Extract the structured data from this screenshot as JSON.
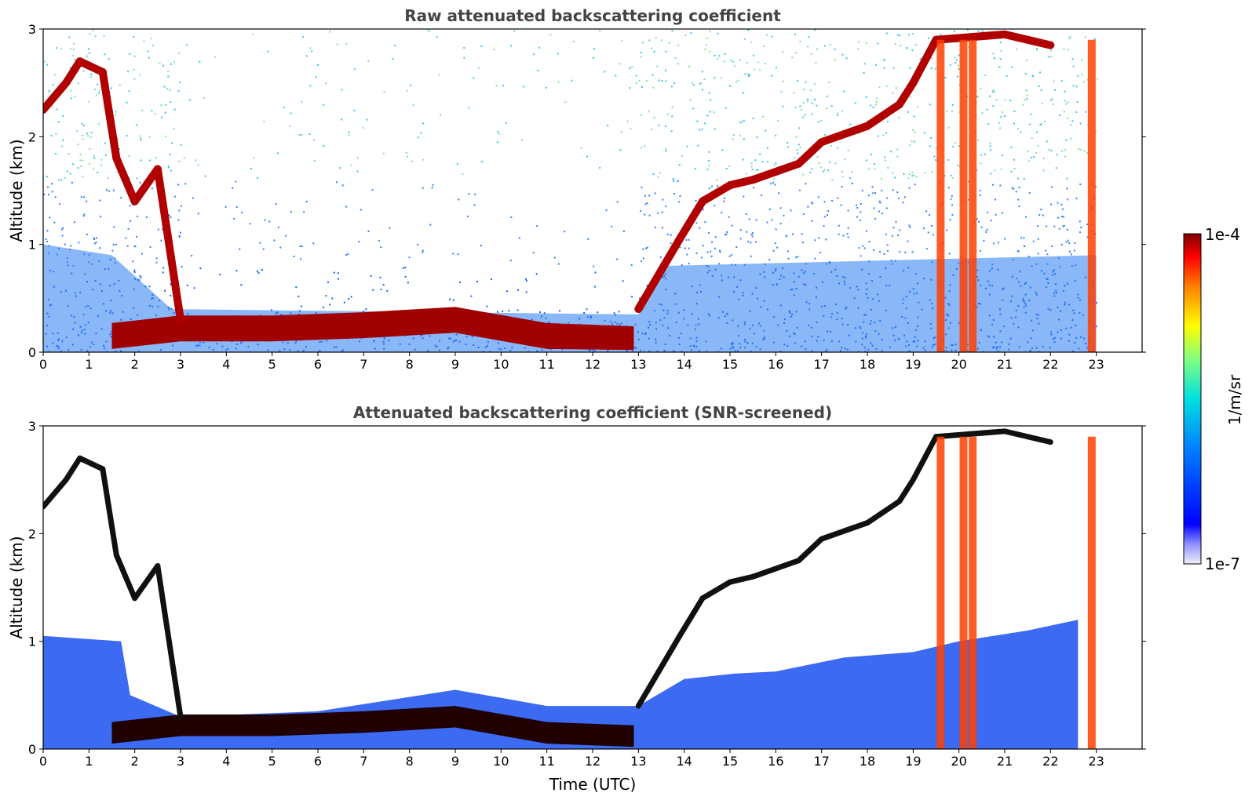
{
  "chart_data": [
    {
      "type": "heatmap",
      "title": "Raw attenuated backscattering coefficient",
      "xlabel": "",
      "ylabel": "Altitude (km)",
      "xlim": [
        0,
        24
      ],
      "ylim": [
        0,
        3
      ],
      "xticks": [
        "0",
        "1",
        "2",
        "3",
        "4",
        "5",
        "6",
        "7",
        "8",
        "9",
        "10",
        "11",
        "12",
        "13",
        "14",
        "15",
        "16",
        "17",
        "18",
        "19",
        "20",
        "21",
        "22",
        "23"
      ],
      "yticks": [
        "0",
        "1",
        "2",
        "3"
      ],
      "features": {
        "cloud_layer_top_km": [
          [
            0.0,
            2.25
          ],
          [
            0.5,
            2.5
          ],
          [
            0.8,
            2.7
          ],
          [
            1.3,
            2.6
          ],
          [
            1.6,
            1.8
          ],
          [
            2.0,
            1.4
          ],
          [
            2.5,
            1.7
          ],
          [
            3.0,
            0.3
          ],
          [
            13.0,
            0.4
          ],
          [
            13.9,
            1.05
          ],
          [
            14.4,
            1.4
          ],
          [
            15.0,
            1.55
          ],
          [
            15.5,
            1.6
          ],
          [
            16.5,
            1.75
          ],
          [
            17.0,
            1.95
          ],
          [
            18.0,
            2.1
          ],
          [
            18.7,
            2.3
          ],
          [
            19.0,
            2.5
          ],
          [
            19.5,
            2.9
          ],
          [
            21.0,
            2.95
          ],
          [
            22.0,
            2.85
          ]
        ],
        "boundary_layer_km": [
          [
            1.5,
            0.15
          ],
          [
            3.0,
            0.22
          ],
          [
            5.0,
            0.22
          ],
          [
            7.0,
            0.25
          ],
          [
            9.0,
            0.3
          ],
          [
            11.0,
            0.15
          ],
          [
            12.9,
            0.12
          ]
        ],
        "precipitation_columns_utc": [
          19.6,
          20.1,
          20.3,
          22.9
        ]
      }
    },
    {
      "type": "heatmap",
      "title": "Attenuated backscattering coefficient (SNR-screened)",
      "xlabel": "Time (UTC)",
      "ylabel": "Altitude (km)",
      "xlim": [
        0,
        24
      ],
      "ylim": [
        0,
        3
      ],
      "xticks": [
        "0",
        "1",
        "2",
        "3",
        "4",
        "5",
        "6",
        "7",
        "8",
        "9",
        "10",
        "11",
        "12",
        "13",
        "14",
        "15",
        "16",
        "17",
        "18",
        "19",
        "20",
        "21",
        "22",
        "23"
      ],
      "yticks": [
        "0",
        "1",
        "2",
        "3"
      ],
      "features": {
        "screened_cloud_top_km": [
          [
            0.0,
            1.05
          ],
          [
            1.7,
            1.0
          ],
          [
            1.9,
            0.5
          ],
          [
            3.0,
            0.3
          ],
          [
            6.0,
            0.35
          ],
          [
            9.0,
            0.55
          ],
          [
            11.0,
            0.4
          ],
          [
            13.0,
            0.4
          ],
          [
            14.0,
            0.65
          ],
          [
            15.1,
            0.7
          ],
          [
            16.0,
            0.72
          ],
          [
            17.5,
            0.85
          ],
          [
            19.0,
            0.9
          ],
          [
            20.0,
            1.0
          ],
          [
            21.5,
            1.1
          ],
          [
            22.6,
            1.2
          ]
        ]
      }
    }
  ],
  "colorbar": {
    "label": "1/m/sr",
    "max_label": "1e-4",
    "min_label": "1e-7",
    "colormap": "jet",
    "colors": [
      "#e8e8f8",
      "#0000ff",
      "#0080ff",
      "#00e0e0",
      "#ffff00",
      "#ff8000",
      "#ff0000",
      "#800000"
    ]
  }
}
